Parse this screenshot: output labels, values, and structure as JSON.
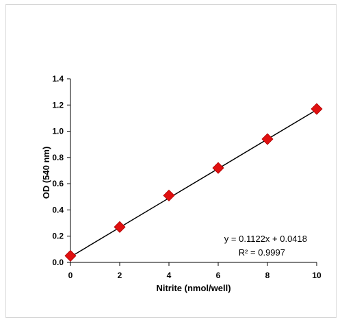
{
  "chart_data": {
    "type": "scatter",
    "xlabel": "Nitrite (nmol/well)",
    "ylabel": "OD (540 nm)",
    "xlim": [
      0,
      10
    ],
    "ylim": [
      0,
      1.4
    ],
    "xticks": [
      "0",
      "2",
      "4",
      "6",
      "8",
      "10"
    ],
    "yticks": [
      "0.0",
      "0.2",
      "0.4",
      "0.6",
      "0.8",
      "1.0",
      "1.2",
      "1.4"
    ],
    "grid": false,
    "series": [
      {
        "marker": "diamond",
        "color": "#e01010",
        "x": [
          0,
          2,
          4,
          6,
          8,
          10
        ],
        "y": [
          0.05,
          0.27,
          0.51,
          0.72,
          0.94,
          1.17
        ]
      }
    ],
    "trendline": {
      "slope": 0.1122,
      "intercept": 0.0418,
      "color": "#000000"
    },
    "annotations": {
      "equation": "y = 0.1122x + 0.0418",
      "r_squared": "R² = 0.9997"
    }
  }
}
